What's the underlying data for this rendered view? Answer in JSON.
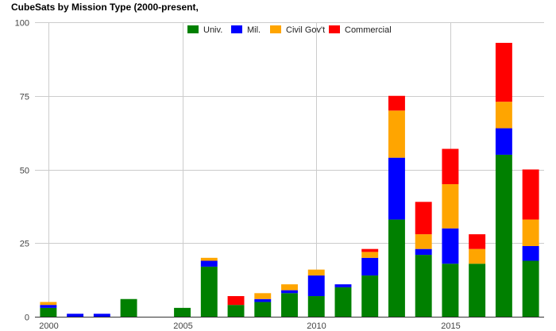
{
  "chart_data": {
    "type": "bar",
    "stacked": true,
    "title": "CubeSats by Mission Type (2000-present,",
    "xlabel": "",
    "ylabel": "",
    "ylim": [
      0,
      100
    ],
    "yticks": [
      0,
      25,
      50,
      75,
      100
    ],
    "xticks": [
      2000,
      2005,
      2010,
      2015
    ],
    "xlim": [
      1999.5,
      2018.5
    ],
    "grid": true,
    "legend_position": "top-center",
    "years": [
      2000,
      2001,
      2002,
      2003,
      2004,
      2005,
      2006,
      2007,
      2008,
      2009,
      2010,
      2011,
      2012,
      2013,
      2014,
      2015,
      2016,
      2017,
      2018
    ],
    "series": [
      {
        "name": "Univ.",
        "color": "#008000",
        "values": [
          3,
          0,
          0,
          6,
          0,
          3,
          17,
          4,
          5,
          8,
          7,
          10,
          14,
          33,
          21,
          18,
          18,
          55,
          19
        ]
      },
      {
        "name": "Mil.",
        "color": "#0000ff",
        "values": [
          1,
          1,
          1,
          0,
          0,
          0,
          2,
          0,
          1,
          1,
          7,
          1,
          6,
          21,
          2,
          12,
          0,
          9,
          5
        ]
      },
      {
        "name": "Civil Gov't",
        "color": "#ffa500",
        "values": [
          1,
          0,
          0,
          0,
          0,
          0,
          1,
          0,
          2,
          2,
          2,
          0,
          2,
          16,
          5,
          15,
          5,
          9,
          9
        ]
      },
      {
        "name": "Commercial",
        "color": "#ff0000",
        "values": [
          0,
          0,
          0,
          0,
          0,
          0,
          0,
          3,
          0,
          0,
          0,
          0,
          1,
          5,
          11,
          12,
          5,
          20,
          17
        ]
      }
    ]
  }
}
